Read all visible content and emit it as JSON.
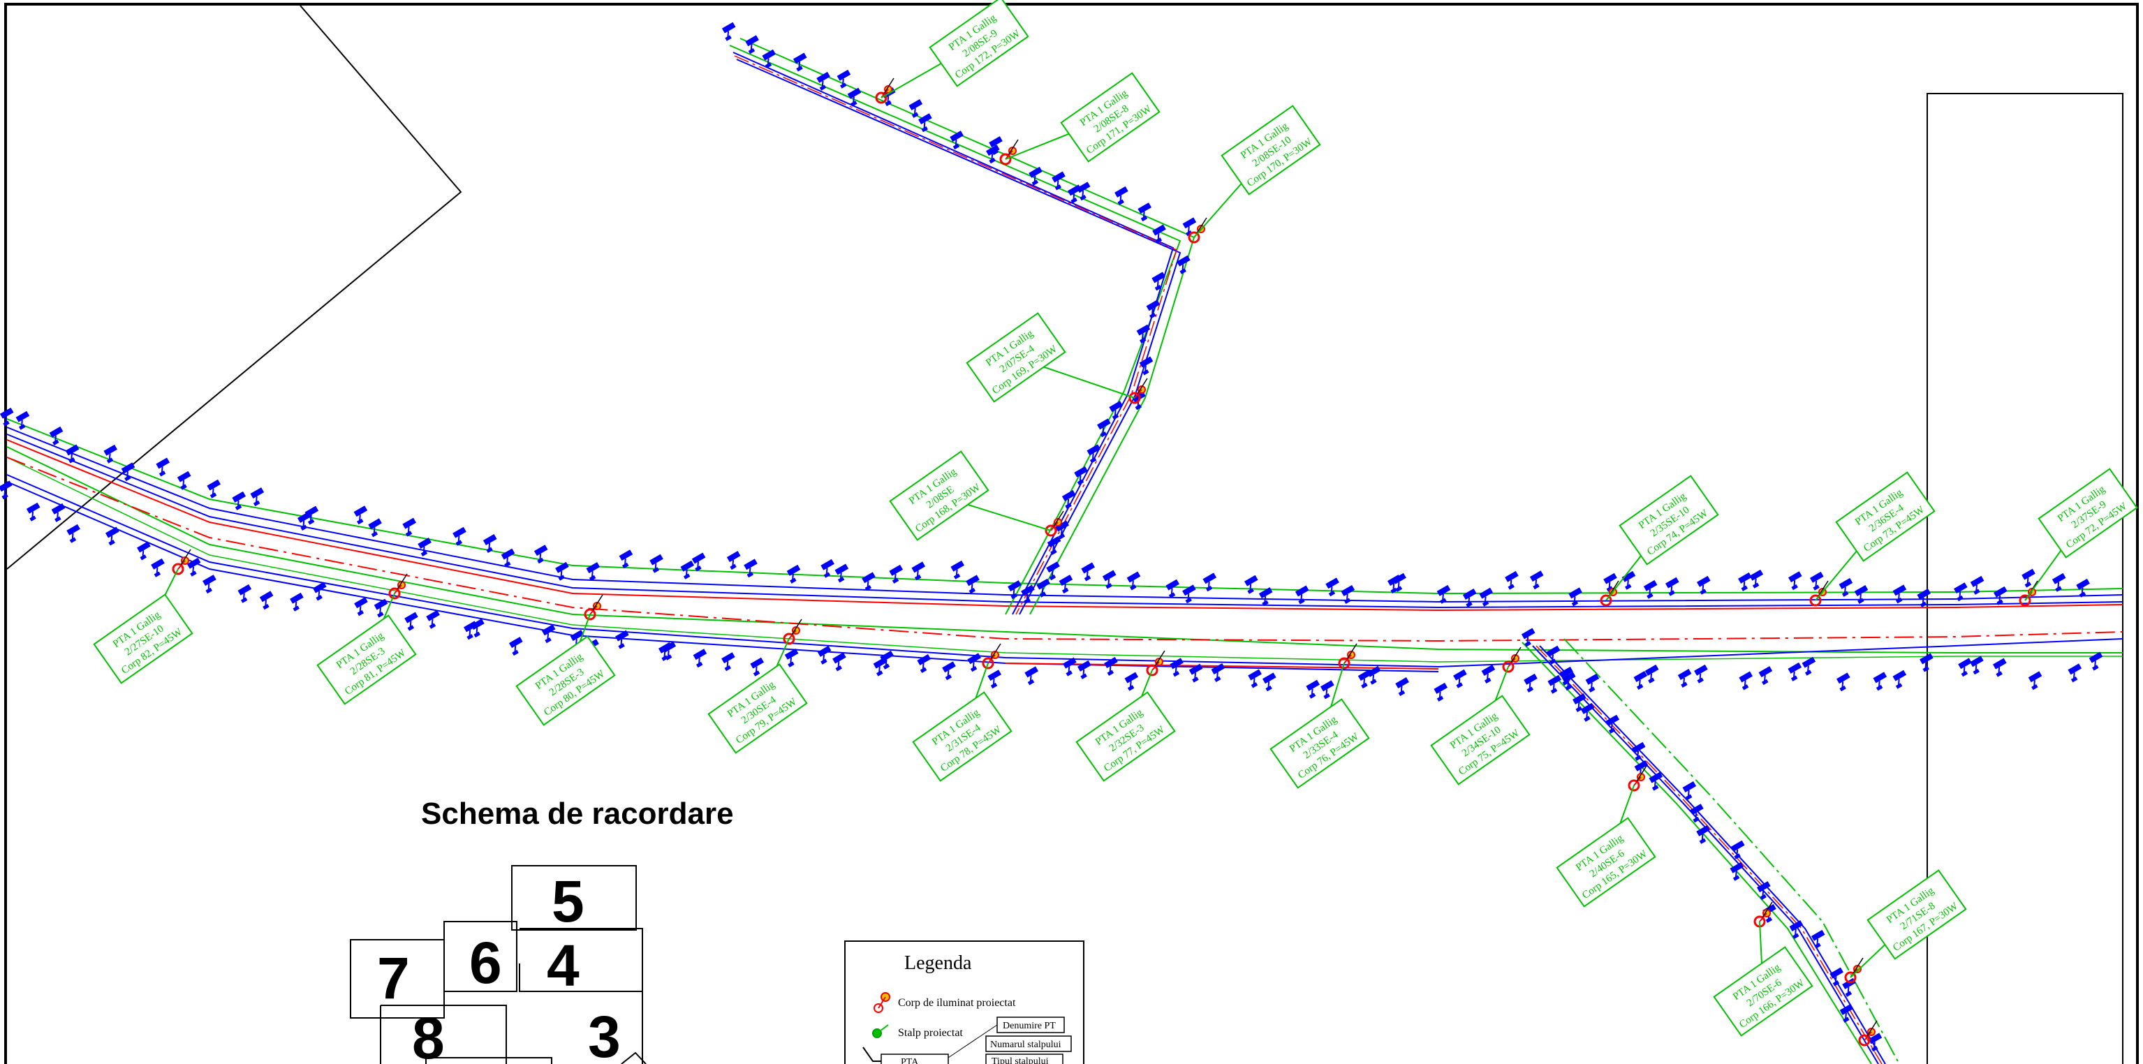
{
  "map": {
    "title": "Schema de racordare",
    "callouts": [
      {
        "lines": [
          "PTA 1 Gallig",
          "2/08SE-9",
          "Corp 172, P=30W"
        ]
      },
      {
        "lines": [
          "PTA 1 Gallig",
          "2/08SE-8",
          "Corp 171, P=30W"
        ]
      },
      {
        "lines": [
          "PTA 1 Gallig",
          "2/08SE-10",
          "Corp 170, P=30W"
        ]
      },
      {
        "lines": [
          "PTA 1 Gallig",
          "2/07SE-4",
          "Corp 169, P=30W"
        ]
      },
      {
        "lines": [
          "PTA 1 Gallig",
          "2/08SE",
          "Corp 168, P=30W"
        ]
      },
      {
        "lines": [
          "PTA 1 Gallig",
          "2/27SE-10",
          "Corp 82, P=45W"
        ]
      },
      {
        "lines": [
          "PTA 1 Gallig",
          "2/28SE-3",
          "Corp 81, P=45W"
        ]
      },
      {
        "lines": [
          "PTA 1 Gallig",
          "2/28SE-3",
          "Corp 80, P=45W"
        ]
      },
      {
        "lines": [
          "PTA 1 Gallig",
          "2/30SE-4",
          "Corp 79, P=45W"
        ]
      },
      {
        "lines": [
          "PTA 1 Gallig",
          "2/31SE-4",
          "Corp 78, P=45W"
        ]
      },
      {
        "lines": [
          "PTA 1 Gallig",
          "2/32SE-3",
          "Corp 77, P=45W"
        ]
      },
      {
        "lines": [
          "PTA 1 Gallig",
          "2/33SE-4",
          "Corp 76, P=45W"
        ]
      },
      {
        "lines": [
          "PTA 1 Gallig",
          "2/34SE-10",
          "Corp 75, P=45W"
        ]
      },
      {
        "lines": [
          "PTA 1 Gallig",
          "2/35SE-10",
          "Corp 74, P=45W"
        ]
      },
      {
        "lines": [
          "PTA 1 Gallig",
          "2/36SE-4",
          "Corp 73, P=45W"
        ]
      },
      {
        "lines": [
          "PTA 1 Gallig",
          "2/37SE-9",
          "Corp 72, P=45W"
        ]
      },
      {
        "lines": [
          "PTA 1 Gallig",
          "2/40SE-6",
          "Corp 165, P=30W"
        ]
      },
      {
        "lines": [
          "PTA 1 Gallig",
          "2/70SE-6",
          "Corp 166, P=30W"
        ]
      },
      {
        "lines": [
          "PTA 1 Gallig",
          "2/71SE-8",
          "Corp 167, P=30W"
        ]
      }
    ],
    "sheet_numbers": [
      "5",
      "7",
      "6",
      "4",
      "8",
      "3"
    ]
  },
  "legend": {
    "title": "Legenda",
    "items": [
      {
        "label": "Corp de iluminat proiectat",
        "icon": "luminaire-icon",
        "color": "#ff0000"
      },
      {
        "label": "Stalp proiectat",
        "icon": "pole-icon",
        "color": "#00c000"
      }
    ],
    "label_box": {
      "name": "Denumire PT",
      "pole_number": "Numarul stalpului",
      "pole_type": "Tipul stalpului",
      "pt_tag": "PTA"
    }
  },
  "colors": {
    "green": "#00c000",
    "red": "#ff0000",
    "blue": "#0000ff",
    "yellow": "#e6c200",
    "frame": "#000000"
  }
}
